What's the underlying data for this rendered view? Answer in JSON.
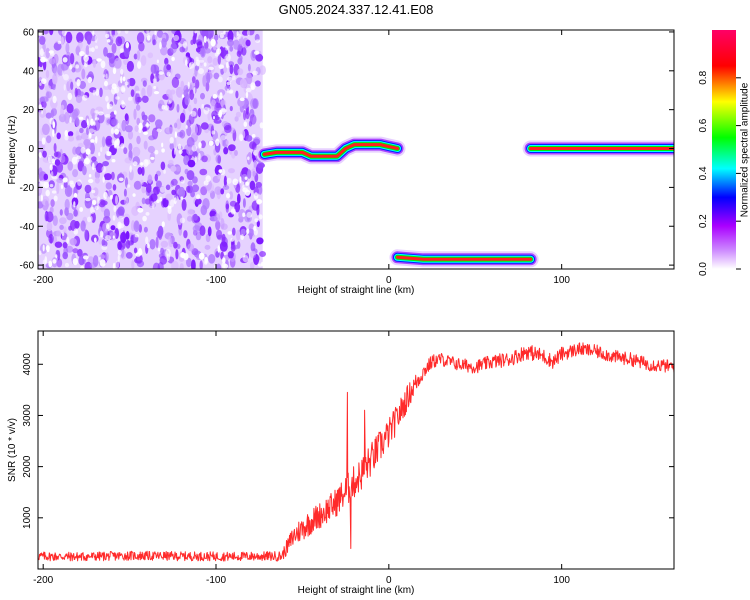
{
  "title": "GN05.2024.337.12.41.E08",
  "chart_data": [
    {
      "type": "heatmap",
      "xlabel": "Height of straight line (km)",
      "ylabel": "Frequency (Hz)",
      "xlim": [
        -203,
        165
      ],
      "ylim": [
        -62,
        61
      ],
      "x_ticks": [
        -200,
        -100,
        0,
        100
      ],
      "y_ticks": [
        60,
        40,
        20,
        0,
        -20,
        -40,
        -60
      ],
      "colorbar": {
        "label": "Normalized spectral amplitude",
        "range": [
          0,
          1
        ],
        "ticks": [
          0.0,
          0.2,
          0.4,
          0.6,
          0.8
        ],
        "colors": [
          "#ffffff",
          "#aa00ff",
          "#0000ff",
          "#00ffff",
          "#00ff00",
          "#ffff00",
          "#ff0000",
          "#ff0066"
        ]
      },
      "noise_region": {
        "x": [
          -203,
          -73
        ],
        "amplitude": [
          0.05,
          0.3
        ]
      },
      "tracks": [
        {
          "points": [
            [
              -72,
              -3
            ],
            [
              -65,
              -2
            ],
            [
              -50,
              -2
            ],
            [
              -45,
              -4
            ],
            [
              -30,
              -4
            ],
            [
              -25,
              0
            ],
            [
              -20,
              2
            ],
            [
              -5,
              2
            ],
            [
              0,
              1
            ],
            [
              5,
              0
            ]
          ],
          "peak": 1.0
        },
        {
          "points": [
            [
              5,
              -56
            ],
            [
              20,
              -57
            ],
            [
              82,
              -57
            ]
          ],
          "peak": 1.0
        },
        {
          "points": [
            [
              82,
              0
            ],
            [
              165,
              0
            ]
          ],
          "peak": 1.0
        }
      ]
    },
    {
      "type": "line",
      "xlabel": "Height of straight line (km)",
      "ylabel": "SNR (10 * v/v)",
      "xlim": [
        -203,
        165
      ],
      "ylim": [
        0,
        4650
      ],
      "x_ticks": [
        -200,
        -100,
        0,
        100
      ],
      "y_ticks": [
        1000,
        2000,
        3000,
        4000
      ],
      "series": [
        {
          "color": "#ff2a2a",
          "x": [
            -203,
            -180,
            -150,
            -120,
            -90,
            -75,
            -62,
            -55,
            -48,
            -40,
            -32,
            -24,
            -16,
            -8,
            0,
            5,
            10,
            15,
            20,
            25,
            30,
            40,
            50,
            60,
            70,
            80,
            90,
            95,
            100,
            110,
            120,
            130,
            140,
            150,
            165
          ],
          "y": [
            250,
            240,
            260,
            250,
            245,
            250,
            250,
            650,
            850,
            1050,
            1250,
            1550,
            1850,
            2250,
            2650,
            2950,
            3300,
            3600,
            3850,
            4050,
            4100,
            4000,
            3950,
            4050,
            4100,
            4250,
            4150,
            4050,
            4200,
            4300,
            4250,
            4150,
            4100,
            4000,
            3950
          ],
          "noise": [
            90,
            90,
            90,
            90,
            90,
            90,
            100,
            220,
            250,
            260,
            280,
            320,
            330,
            330,
            300,
            280,
            260,
            200,
            150,
            140,
            130,
            130,
            130,
            140,
            140,
            150,
            150,
            140,
            140,
            130,
            130,
            130,
            130,
            130,
            130
          ],
          "spikes": [
            [
              -24,
              3450
            ],
            [
              -22,
              1800
            ],
            [
              -14,
              3100
            ],
            [
              -22,
              400
            ]
          ]
        }
      ]
    }
  ]
}
